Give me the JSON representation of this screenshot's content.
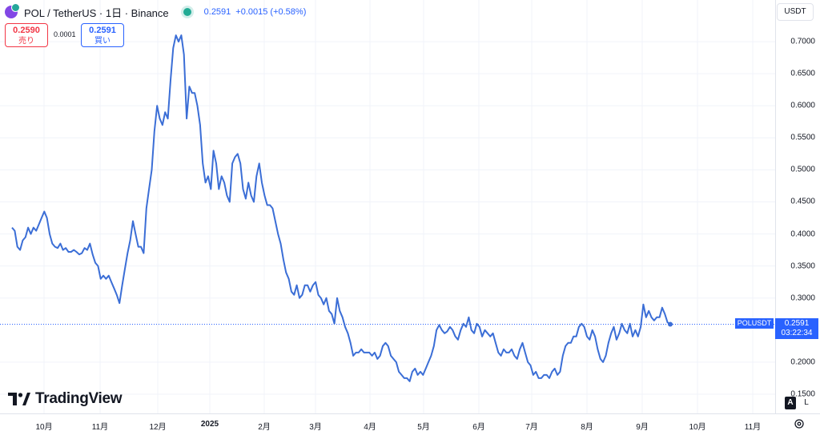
{
  "header": {
    "title": "POL / TetherUS · 1日 · Binance",
    "price": "0.2591",
    "change": "+0.0015 (+0.58%)"
  },
  "trade": {
    "sell_price": "0.2590",
    "sell_label": "売り",
    "spread": "0.0001",
    "buy_price": "0.2591",
    "buy_label": "買い"
  },
  "currency": "USDT",
  "last_price": {
    "symbol": "POLUSDT",
    "value": "0.2591",
    "countdown": "03:22:34"
  },
  "logo": {
    "text": "TradingView"
  },
  "scale_buttons": {
    "auto": "A",
    "log": "L"
  },
  "colors": {
    "line": "#3b6ed6",
    "accent": "#2962ff",
    "sell": "#f23645",
    "live": "#22ab94"
  },
  "chart_data": {
    "type": "line",
    "series": [
      {
        "values": [
          0.41,
          0.405,
          0.38,
          0.375,
          0.39,
          0.395,
          0.41,
          0.4,
          0.41,
          0.405,
          0.415,
          0.425,
          0.435,
          0.425,
          0.4,
          0.385,
          0.38,
          0.378,
          0.385,
          0.375,
          0.378,
          0.372,
          0.372,
          0.375,
          0.372,
          0.368,
          0.37,
          0.378,
          0.375,
          0.385,
          0.368,
          0.355,
          0.35,
          0.33,
          0.335,
          0.33,
          0.335,
          0.325,
          0.315,
          0.305,
          0.292,
          0.32,
          0.345,
          0.37,
          0.39,
          0.42,
          0.4,
          0.38,
          0.38,
          0.37,
          0.44,
          0.47,
          0.5,
          0.56,
          0.6,
          0.58,
          0.57,
          0.59,
          0.58,
          0.64,
          0.69,
          0.71,
          0.7,
          0.71,
          0.68,
          0.58,
          0.63,
          0.62,
          0.62,
          0.6,
          0.57,
          0.51,
          0.48,
          0.49,
          0.47,
          0.53,
          0.51,
          0.47,
          0.49,
          0.48,
          0.46,
          0.45,
          0.51,
          0.52,
          0.525,
          0.51,
          0.47,
          0.455,
          0.48,
          0.46,
          0.45,
          0.49,
          0.51,
          0.48,
          0.46,
          0.445,
          0.445,
          0.44,
          0.42,
          0.4,
          0.385,
          0.36,
          0.34,
          0.33,
          0.31,
          0.305,
          0.32,
          0.3,
          0.305,
          0.32,
          0.32,
          0.31,
          0.32,
          0.325,
          0.305,
          0.3,
          0.29,
          0.3,
          0.28,
          0.275,
          0.26,
          0.3,
          0.28,
          0.27,
          0.255,
          0.245,
          0.23,
          0.21,
          0.215,
          0.215,
          0.22,
          0.215,
          0.215,
          0.215,
          0.21,
          0.215,
          0.205,
          0.21,
          0.225,
          0.23,
          0.225,
          0.21,
          0.205,
          0.2,
          0.185,
          0.18,
          0.175,
          0.175,
          0.17,
          0.185,
          0.19,
          0.18,
          0.185,
          0.18,
          0.19,
          0.2,
          0.21,
          0.225,
          0.25,
          0.258,
          0.25,
          0.245,
          0.248,
          0.255,
          0.25,
          0.24,
          0.235,
          0.25,
          0.26,
          0.255,
          0.27,
          0.25,
          0.245,
          0.26,
          0.255,
          0.24,
          0.25,
          0.245,
          0.24,
          0.245,
          0.23,
          0.215,
          0.21,
          0.22,
          0.215,
          0.215,
          0.22,
          0.21,
          0.205,
          0.22,
          0.23,
          0.215,
          0.2,
          0.195,
          0.18,
          0.185,
          0.175,
          0.175,
          0.18,
          0.18,
          0.175,
          0.185,
          0.19,
          0.18,
          0.185,
          0.21,
          0.225,
          0.23,
          0.23,
          0.24,
          0.24,
          0.255,
          0.26,
          0.255,
          0.24,
          0.235,
          0.25,
          0.24,
          0.22,
          0.205,
          0.2,
          0.21,
          0.23,
          0.245,
          0.255,
          0.235,
          0.245,
          0.26,
          0.25,
          0.245,
          0.26,
          0.24,
          0.25,
          0.24,
          0.255,
          0.29,
          0.27,
          0.28,
          0.27,
          0.265,
          0.27,
          0.27,
          0.285,
          0.275,
          0.262,
          0.2591
        ]
      }
    ],
    "x_ticks": [
      "10月",
      "11月",
      "12月",
      "2025",
      "2月",
      "3月",
      "4月",
      "5月",
      "6月",
      "7月",
      "8月",
      "9月",
      "10月",
      "11月"
    ],
    "y_ticks": [
      "0.7000",
      "0.6500",
      "0.6000",
      "0.5500",
      "0.5000",
      "0.4500",
      "0.4000",
      "0.3500",
      "0.3000",
      "0.2000",
      "0.1500"
    ],
    "ylim": [
      0.12,
      0.765
    ],
    "grid": true,
    "legend": "none"
  }
}
